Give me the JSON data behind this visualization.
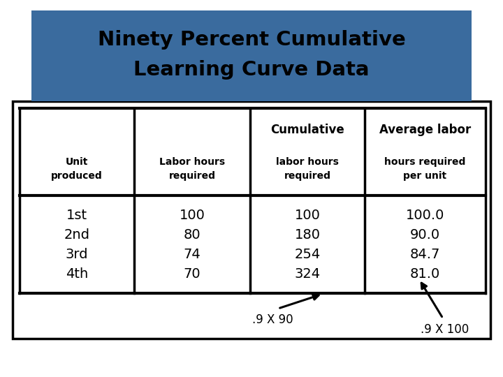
{
  "title_line1": "Ninety Percent Cumulative",
  "title_line2": "Learning Curve Data",
  "title_bg_color": "#3a6b9e",
  "title_text_color": "#000000",
  "col_headers_row1_2": "Cumulative",
  "col_headers_row1_3": "Average labor",
  "col_headers_row2": [
    "Unit\nproduced",
    "Labor hours\nrequired",
    "labor hours\nrequired",
    "hours required\nper unit"
  ],
  "rows": [
    [
      "1st",
      "100",
      "100",
      "100.0"
    ],
    [
      "2nd",
      "80",
      "180",
      "90.0"
    ],
    [
      "3rd",
      "74",
      "254",
      "84.7"
    ],
    [
      "4th",
      "70",
      "324",
      "81.0"
    ]
  ],
  "annotation1_text": ".9 X 90",
  "annotation2_text": ".9 X 100",
  "bg_color": "#ffffff",
  "border_color": "#000000",
  "title_font_size": 21,
  "header1_font_size": 12,
  "header2_font_size": 10,
  "data_font_size": 14,
  "annot_font_size": 12
}
